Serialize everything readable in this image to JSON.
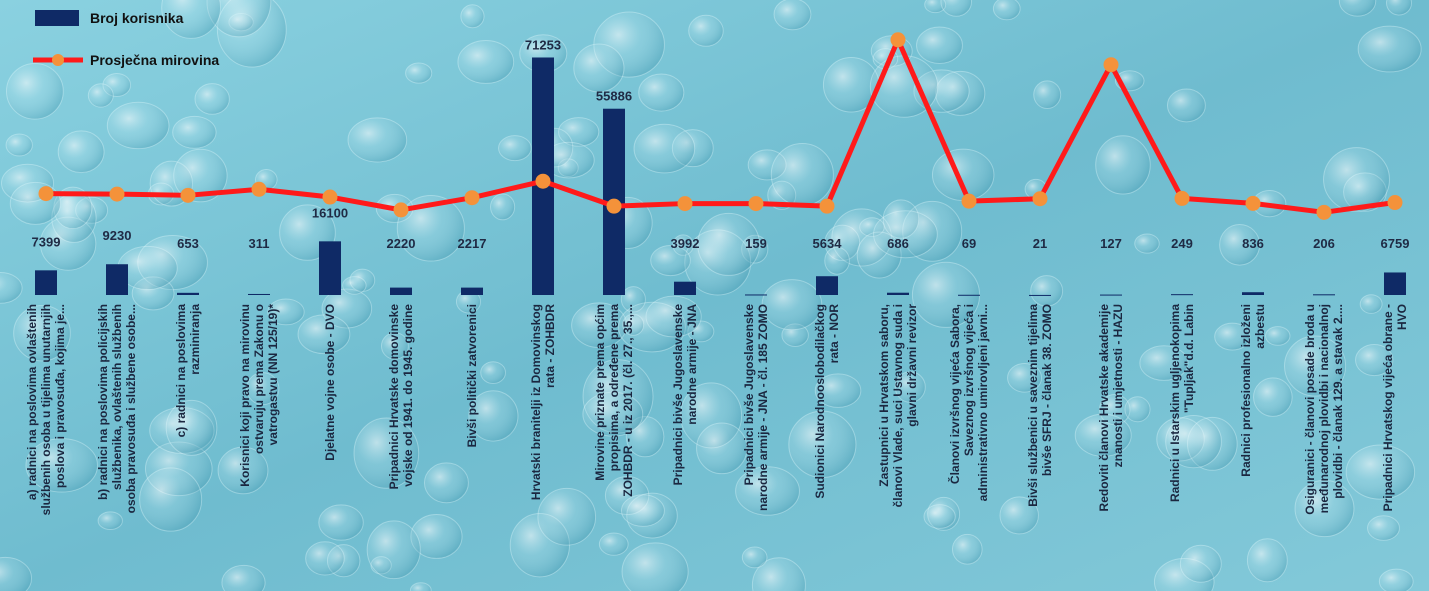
{
  "chart_data": {
    "type": "bar+line",
    "colors": {
      "bar": "#0f2a66",
      "line": "#ff1a1a",
      "marker": "#f4923a",
      "background": "#7dc4d6"
    },
    "legend": {
      "placement": "top-left",
      "items": [
        {
          "label": "Broj korisnika",
          "kind": "bar"
        },
        {
          "label": "Prosječna mirovina",
          "kind": "line"
        }
      ]
    },
    "series": [
      {
        "name": "Broj korisnika",
        "type": "bar",
        "values": [
          7399,
          9230,
          653,
          311,
          16100,
          2220,
          2217,
          71253,
          55886,
          3992,
          159,
          5634,
          686,
          69,
          21,
          127,
          249,
          836,
          206,
          6759
        ]
      },
      {
        "name": "Prosječna mirovina",
        "type": "line",
        "values": [
          5900,
          5870,
          5800,
          6150,
          5700,
          4950,
          5660,
          6620,
          5170,
          5320,
          5320,
          5170,
          14850,
          5460,
          5600,
          13400,
          5620,
          5330,
          4810,
          5380
        ]
      }
    ],
    "categories": [
      [
        "a) radnici na poslovima ovlaštenih",
        "službenih osoba u tijelima unutarnjih",
        "poslova i pravosuđa, kojima je..."
      ],
      [
        "b) radnici na  poslovima policijskih",
        "službenika, ovlaštenih službenih",
        "osoba pravosuđa i službene osobe..."
      ],
      [
        "c) radnici na poslovima",
        "razminiranja"
      ],
      [
        "Korisnici koji pravo na mirovinu",
        "ostvaruju prema Zakonu o",
        "vatrogastvu (NN 125/19)*"
      ],
      [
        "Djelatne vojne osobe - DVO"
      ],
      [
        "Pripadnici Hrvatske domovinske",
        "vojske od 1941. do 1945. godine"
      ],
      [
        "Bivši politički zatvorenici"
      ],
      [
        "Hrvatski branitelji iz Domovinskog",
        "rata - ZOHBDR"
      ],
      [
        "Mirovine priznate prema općim",
        "propisima, a određene prema",
        "ZOHBDR - u iz 2017. (čl. 27., 35.,..."
      ],
      [
        "Pripadnici bivše Jugoslavenske",
        "narodne armije - JNA"
      ],
      [
        "Pripadnici bivše Jugoslavenske",
        "narodne armije - JNA - čl. 185 ZOMO"
      ],
      [
        "Sudionici Narodnooslobodilačkog",
        "rata - NOR"
      ],
      [
        "Zastupnici u Hrvatskom saboru,",
        "članovi Vlade, suci Ustavnog suda i",
        "glavni državni revizor"
      ],
      [
        "Članovi izvršnog vijeća Sabora,",
        "Saveznog izvršnog vijeća i",
        "administrativno umirovljeni javni..."
      ],
      [
        "Bivši službenici u saveznim tijelima",
        "bivše SFRJ - članak 38. ZOMO"
      ],
      [
        "Redoviti članovi Hrvatske akademije",
        "znanosti i umjetnosti - HAZU"
      ],
      [
        "Radnici u Istarskim ugljenokopima",
        "\"Tupljak\"d.d. Labin"
      ],
      [
        "Radnici profesionalno izloženi",
        "azbestu"
      ],
      [
        "Osiguranici - članovi posade broda u",
        "međunarodnoj plovidbi i nacionalnoj",
        "plovidbi - članak 129. a stavak 2...."
      ],
      [
        "Pripadnici Hrvatskog vijeća obrane -",
        "HVO"
      ]
    ],
    "data_labels": [
      "7399",
      "9230",
      "653",
      "311",
      "16100",
      "2220",
      "2217",
      "71253",
      "55886",
      "3992",
      "159",
      "5634",
      "686",
      "69",
      "21",
      "127",
      "249",
      "836",
      "206",
      "6759"
    ],
    "bar_axis": {
      "min": 0,
      "max": 75000
    },
    "line_axis": {
      "min": 0,
      "max": 16000
    },
    "grid": false
  }
}
